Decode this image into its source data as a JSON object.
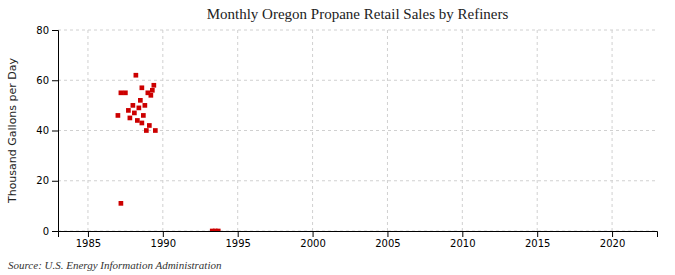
{
  "chart_data": {
    "type": "scatter",
    "title": "Monthly Oregon Propane Retail Sales by Refiners",
    "y_label": "Thousand Gallons per Day",
    "annotations": [
      "Source: U.S. Energy Information Administration"
    ],
    "x": [
      1987.0,
      1987.2,
      1987.5,
      1987.7,
      1987.8,
      1988.0,
      1988.1,
      1988.2,
      1988.3,
      1988.4,
      1988.5,
      1988.6,
      1988.6,
      1988.7,
      1988.8,
      1988.9,
      1989.0,
      1989.1,
      1989.2,
      1989.3,
      1989.4,
      1989.5,
      1987.2,
      1993.3,
      1993.5,
      1993.7
    ],
    "values": [
      46,
      55,
      55,
      48,
      45,
      50,
      47,
      62,
      44,
      49,
      52,
      57,
      43,
      46,
      50,
      40,
      55,
      42,
      54,
      56,
      58,
      40,
      11,
      0,
      0,
      0
    ],
    "color": "#cc0000",
    "marker": "square",
    "xlim": [
      1983,
      2023
    ],
    "ylim": [
      0,
      80
    ],
    "xticks": [
      1985,
      1990,
      1995,
      2000,
      2005,
      2010,
      2015,
      2020
    ],
    "yticks": [
      0,
      20,
      40,
      60,
      80
    ],
    "grid": true
  }
}
